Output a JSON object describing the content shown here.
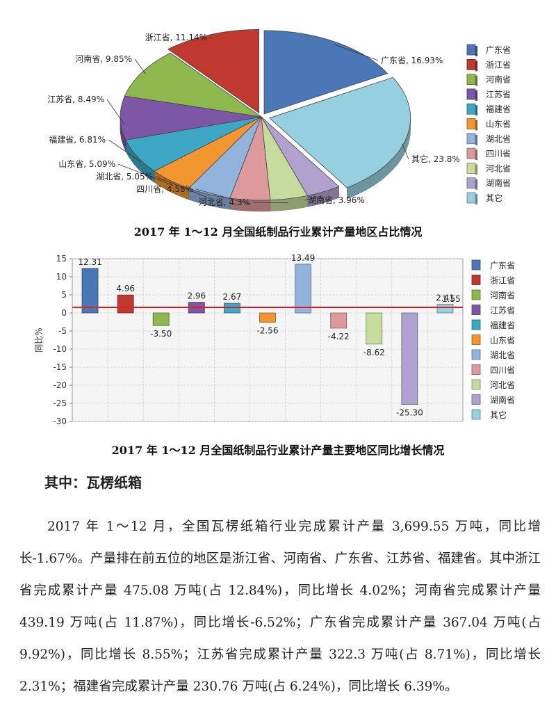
{
  "colors": {
    "guangdong": "#4a78b6",
    "zhejiang": "#c0392e",
    "henan": "#8cb84e",
    "jiangsu": "#7b57a6",
    "fujian": "#3fa7c6",
    "shandong": "#f0952f",
    "hubei": "#92b3dc",
    "sichuan": "#dc9a9c",
    "hebei": "#c5dc9c",
    "hunan": "#b0a2cf",
    "other": "#96cfde",
    "reference_line": "#e02020",
    "plot_background": "#f5f5f5"
  },
  "chart_data": [
    {
      "type": "pie",
      "title": "2017 年 1～12 月全国纸制品行业累计产量地区占比情况",
      "slices": [
        {
          "label": "广东省",
          "value": 16.93,
          "display": "广东省, 16.93%",
          "color": "#4a78b6"
        },
        {
          "label": "其它",
          "value": 23.8,
          "display": "其它, 23.8%",
          "color": "#96cfde"
        },
        {
          "label": "湖南省",
          "value": 3.96,
          "display": "湖南省, 3.96%",
          "color": "#b0a2cf"
        },
        {
          "label": "河北省",
          "value": 4.3,
          "display": "河北省, 4.3%",
          "color": "#c5dc9c"
        },
        {
          "label": "四川省",
          "value": 4.58,
          "display": "四川省, 4.58%",
          "color": "#dc9a9c"
        },
        {
          "label": "湖北省",
          "value": 5.05,
          "display": "湖北省, 5.05%",
          "color": "#92b3dc"
        },
        {
          "label": "山东省",
          "value": 5.09,
          "display": "山东省, 5.09%",
          "color": "#f0952f"
        },
        {
          "label": "福建省",
          "value": 6.81,
          "display": "福建省, 6.81%",
          "color": "#3fa7c6"
        },
        {
          "label": "江苏省",
          "value": 8.49,
          "display": "江苏省, 8.49%",
          "color": "#7b57a6"
        },
        {
          "label": "河南省",
          "value": 9.85,
          "display": "河南省, 9.85%",
          "color": "#8cb84e"
        },
        {
          "label": "浙江省",
          "value": 11.14,
          "display": "浙江省, 11.14%",
          "color": "#c0392e"
        }
      ],
      "legend": [
        "广东省",
        "浙江省",
        "河南省",
        "江苏省",
        "福建省",
        "山东省",
        "湖北省",
        "四川省",
        "河北省",
        "湖南省",
        "其它"
      ],
      "legend_position": "right"
    },
    {
      "type": "bar",
      "title": "2017 年 1～12 月全国纸制品行业累计产量主要地区同比增长情况",
      "ylabel": "同比%",
      "ylim": [
        -30,
        15
      ],
      "yticks": [
        15,
        10,
        5,
        0,
        -5,
        -10,
        -15,
        -20,
        -25,
        -30
      ],
      "grid": true,
      "categories": [
        "广东省",
        "浙江省",
        "河南省",
        "江苏省",
        "福建省",
        "山东省",
        "湖北省",
        "四川省",
        "河北省",
        "湖南省",
        "其它"
      ],
      "values": [
        12.31,
        4.96,
        -3.5,
        2.96,
        2.67,
        -2.56,
        13.49,
        -4.22,
        -8.62,
        -25.3,
        2.41
      ],
      "value_labels": [
        "12.31",
        "4.96",
        "-3.50",
        "2.96",
        "2.67",
        "-2.56",
        "13.49",
        "-4.22",
        "-8.62",
        "-25.30",
        "2.41"
      ],
      "reference_line": {
        "value": 1.55,
        "label": "1.55"
      },
      "legend_position": "right"
    }
  ],
  "article": {
    "heading": "其中：瓦楞纸箱",
    "paragraph": "2017 年 1～12 月，全国瓦楞纸箱行业完成累计产量 3,699.55 万吨，同比增长-1.67%。产量排在前五位的地区是浙江省、河南省、广东省、江苏省、福建省。其中浙江省完成累计产量 475.08 万吨(占 12.84%)，同比增长 4.02%；河南省完成累计产量 439.19 万吨(占 11.87%)，同比增长-6.52%；广东省完成累计产量 367.04 万吨(占 9.92%)，同比增长 8.55%；江苏省完成累计产量 322.3 万吨(占 8.71%)，同比增长 2.31%；福建省完成累计产量 230.76 万吨(占 6.24%)，同比增长 6.39%。"
  }
}
